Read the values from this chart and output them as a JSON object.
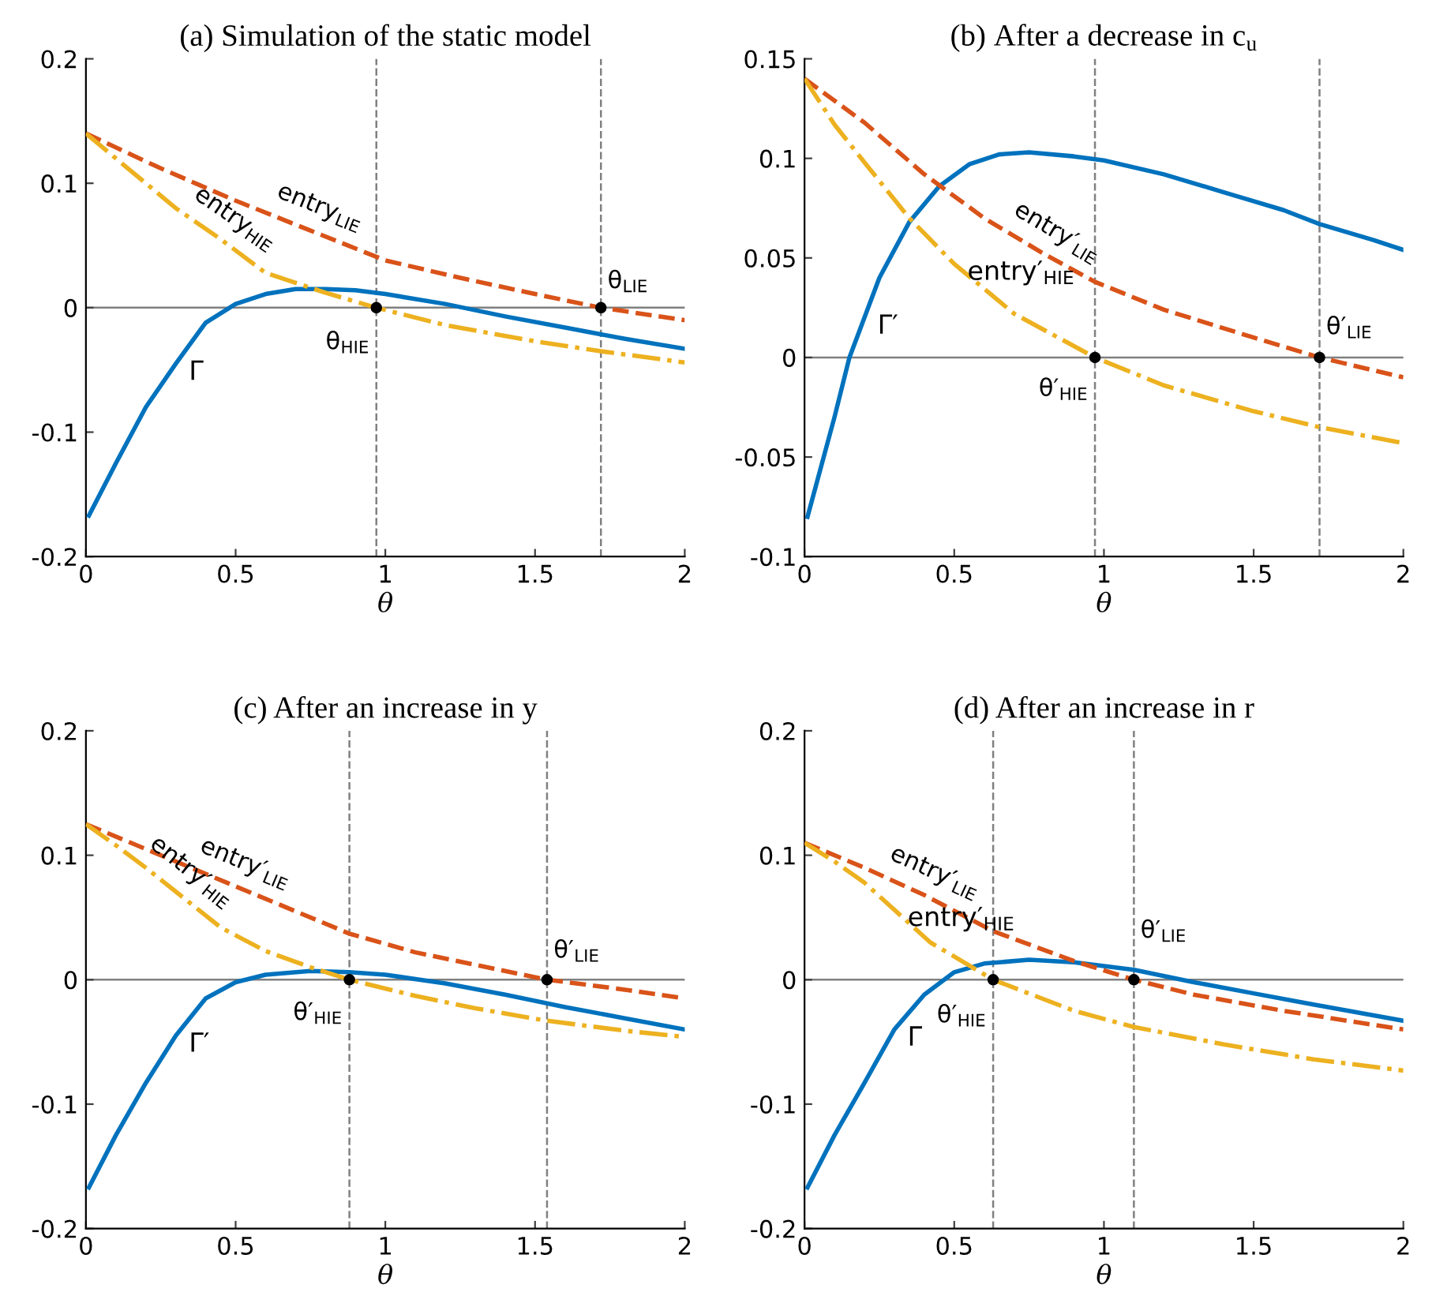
{
  "chart_data": [
    {
      "type": "line",
      "title": "(a) Simulation of the static model",
      "xlabel": "θ",
      "xlim": [
        0,
        2
      ],
      "xticks": [
        0,
        0.5,
        1,
        1.5,
        2
      ],
      "ylim": [
        -0.2,
        0.2
      ],
      "yticks": [
        -0.2,
        -0.1,
        0,
        0.1,
        0.2
      ],
      "grid": false,
      "series": [
        {
          "color": "#0072bd",
          "line_style": "solid",
          "x": [
            0.01,
            0.1,
            0.2,
            0.3,
            0.4,
            0.5,
            0.6,
            0.7,
            0.8,
            0.9,
            1.0,
            1.2,
            1.4,
            1.6,
            1.8,
            2.0
          ],
          "values": [
            -0.167,
            -0.125,
            -0.08,
            -0.045,
            -0.012,
            0.003,
            0.011,
            0.015,
            0.015,
            0.014,
            0.011,
            0.003,
            -0.007,
            -0.016,
            -0.025,
            -0.033
          ]
        },
        {
          "color": "#d95319",
          "line_style": "dashed",
          "x": [
            0,
            0.25,
            0.5,
            0.75,
            1.0,
            1.25,
            1.5,
            1.72,
            2.0
          ],
          "values": [
            0.14,
            0.112,
            0.086,
            0.062,
            0.038,
            0.024,
            0.011,
            0.0,
            -0.01
          ]
        },
        {
          "color": "#edb120",
          "line_style": "dashdot",
          "x": [
            0,
            0.1,
            0.2,
            0.3,
            0.45,
            0.6,
            0.8,
            0.97,
            1.2,
            1.5,
            1.72,
            2.0
          ],
          "values": [
            0.14,
            0.12,
            0.1,
            0.08,
            0.055,
            0.028,
            0.012,
            0.0,
            -0.014,
            -0.027,
            -0.035,
            -0.044
          ]
        },
        {
          "type": "scatter",
          "color": "#000000",
          "marker": "circle",
          "x": [
            0.97,
            1.72
          ],
          "values": [
            0,
            0
          ]
        }
      ],
      "ref_lines": [
        {
          "axis": "y",
          "value": 0,
          "color": "#808080",
          "line_style": "solid"
        },
        {
          "axis": "x",
          "value": 0.97,
          "color": "#808080",
          "line_style": "dashed"
        },
        {
          "axis": "x",
          "value": 1.72,
          "color": "#808080",
          "line_style": "dashed"
        }
      ],
      "annotations": [
        {
          "text": "entry$_{LIE}$",
          "x": 0.75,
          "y": 0.062
        },
        {
          "text": "entry$_{HIE}$",
          "x": 0.45,
          "y": 0.055
        },
        {
          "text": "θ$_{LIE}$",
          "x": 1.72,
          "y": 0.021
        },
        {
          "text": "θ$_{HIE}$",
          "x": 0.97,
          "y": -0.028
        },
        {
          "text": "Γ",
          "x": 0.3,
          "y": -0.045
        }
      ]
    },
    {
      "type": "line",
      "title": "(b) After a decrease in c$_{u}$",
      "xlabel": "θ",
      "xlim": [
        0,
        2
      ],
      "xticks": [
        0,
        0.5,
        1,
        1.5,
        2
      ],
      "ylim": [
        -0.1,
        0.15
      ],
      "yticks": [
        -0.1,
        -0.05,
        0,
        0.05,
        0.1,
        0.15
      ],
      "grid": false,
      "series": [
        {
          "color": "#0072bd",
          "line_style": "solid",
          "x": [
            0.01,
            0.1,
            0.15,
            0.25,
            0.35,
            0.45,
            0.55,
            0.65,
            0.75,
            0.9,
            1.0,
            1.2,
            1.4,
            1.6,
            1.72,
            1.9,
            2.0
          ],
          "values": [
            -0.08,
            -0.03,
            0.0,
            0.04,
            0.068,
            0.086,
            0.097,
            0.102,
            0.103,
            0.101,
            0.099,
            0.092,
            0.083,
            0.074,
            0.067,
            0.059,
            0.054
          ]
        },
        {
          "color": "#d95319",
          "line_style": "dashed",
          "x": [
            0,
            0.2,
            0.4,
            0.6,
            0.8,
            0.97,
            1.2,
            1.5,
            1.72,
            2.0
          ],
          "values": [
            0.14,
            0.118,
            0.092,
            0.07,
            0.052,
            0.038,
            0.024,
            0.01,
            0.0,
            -0.01
          ]
        },
        {
          "color": "#edb120",
          "line_style": "dashdot",
          "x": [
            0,
            0.1,
            0.2,
            0.35,
            0.5,
            0.7,
            0.97,
            1.2,
            1.5,
            1.72,
            2.0
          ],
          "values": [
            0.14,
            0.117,
            0.098,
            0.07,
            0.047,
            0.022,
            0.0,
            -0.014,
            -0.027,
            -0.035,
            -0.043
          ]
        },
        {
          "type": "scatter",
          "color": "#000000",
          "marker": "circle",
          "x": [
            0.97,
            1.72
          ],
          "values": [
            0,
            0
          ]
        }
      ],
      "ref_lines": [
        {
          "axis": "y",
          "value": 0,
          "color": "#808080",
          "line_style": "solid"
        },
        {
          "axis": "x",
          "value": 0.97,
          "color": "#808080",
          "line_style": "dashed"
        },
        {
          "axis": "x",
          "value": 1.72,
          "color": "#808080",
          "line_style": "dashed"
        }
      ],
      "annotations": [
        {
          "text": "entry′$_{LIE}$",
          "x": 0.8,
          "y": 0.052
        },
        {
          "text": "entry′$_{HIE}$",
          "x": 0.5,
          "y": 0.047
        },
        {
          "text": "θ′$_{LIE}$",
          "x": 1.72,
          "y": 0.015
        },
        {
          "text": "θ′$_{HIE}$",
          "x": 0.97,
          "y": -0.016
        },
        {
          "text": "Γ′",
          "x": 0.2,
          "y": 0.02
        }
      ]
    },
    {
      "type": "line",
      "title": "(c) After an increase in y",
      "xlabel": "θ",
      "xlim": [
        0,
        2
      ],
      "xticks": [
        0,
        0.5,
        1,
        1.5,
        2
      ],
      "ylim": [
        -0.2,
        0.2
      ],
      "yticks": [
        -0.2,
        -0.1,
        0,
        0.1,
        0.2
      ],
      "grid": false,
      "series": [
        {
          "color": "#0072bd",
          "line_style": "solid",
          "x": [
            0.01,
            0.1,
            0.2,
            0.3,
            0.4,
            0.5,
            0.6,
            0.75,
            0.88,
            1.0,
            1.2,
            1.4,
            1.6,
            1.8,
            2.0
          ],
          "values": [
            -0.167,
            -0.125,
            -0.083,
            -0.045,
            -0.015,
            -0.002,
            0.004,
            0.007,
            0.006,
            0.004,
            -0.003,
            -0.012,
            -0.022,
            -0.031,
            -0.04
          ]
        },
        {
          "color": "#d95319",
          "line_style": "dashed",
          "x": [
            0,
            0.25,
            0.5,
            0.7,
            0.88,
            1.1,
            1.3,
            1.54,
            1.8,
            2.0
          ],
          "values": [
            0.125,
            0.1,
            0.075,
            0.055,
            0.037,
            0.022,
            0.012,
            0.0,
            -0.008,
            -0.015
          ]
        },
        {
          "color": "#edb120",
          "line_style": "dashdot",
          "x": [
            0,
            0.1,
            0.2,
            0.45,
            0.6,
            0.75,
            0.88,
            1.1,
            1.3,
            1.54,
            1.8,
            2.0
          ],
          "values": [
            0.125,
            0.108,
            0.09,
            0.042,
            0.023,
            0.01,
            0.0,
            -0.013,
            -0.023,
            -0.033,
            -0.041,
            -0.046
          ]
        },
        {
          "type": "scatter",
          "color": "#000000",
          "marker": "circle",
          "x": [
            0.88,
            1.54
          ],
          "values": [
            0,
            0
          ]
        }
      ],
      "ref_lines": [
        {
          "axis": "y",
          "value": 0,
          "color": "#808080",
          "line_style": "solid"
        },
        {
          "axis": "x",
          "value": 0.88,
          "color": "#808080",
          "line_style": "dashed"
        },
        {
          "axis": "x",
          "value": 1.54,
          "color": "#808080",
          "line_style": "dashed"
        }
      ],
      "annotations": [
        {
          "text": "entry′$_{LIE}$",
          "x": 0.5,
          "y": 0.075
        },
        {
          "text": "entry′$_{HIE}$",
          "x": 0.3,
          "y": 0.071
        },
        {
          "text": "θ′$_{LIE}$",
          "x": 1.54,
          "y": 0.023
        },
        {
          "text": "θ′$_{HIE}$",
          "x": 0.88,
          "y": -0.027
        },
        {
          "text": "Γ′",
          "x": 0.3,
          "y": -0.045
        }
      ]
    },
    {
      "type": "line",
      "title": "(d) After an increase in r",
      "xlabel": "θ",
      "xlim": [
        0,
        2
      ],
      "xticks": [
        0,
        0.5,
        1,
        1.5,
        2
      ],
      "ylim": [
        -0.2,
        0.2
      ],
      "yticks": [
        -0.2,
        -0.1,
        0,
        0.1,
        0.2
      ],
      "grid": false,
      "series": [
        {
          "color": "#0072bd",
          "line_style": "solid",
          "x": [
            0.01,
            0.1,
            0.2,
            0.3,
            0.4,
            0.5,
            0.6,
            0.75,
            0.9,
            1.1,
            1.3,
            1.5,
            1.7,
            2.0
          ],
          "values": [
            -0.167,
            -0.125,
            -0.083,
            -0.04,
            -0.012,
            0.006,
            0.013,
            0.016,
            0.014,
            0.008,
            -0.002,
            -0.011,
            -0.02,
            -0.033
          ]
        },
        {
          "color": "#d95319",
          "line_style": "dashed",
          "x": [
            0,
            0.2,
            0.4,
            0.63,
            0.9,
            1.1,
            1.3,
            1.6,
            2.0
          ],
          "values": [
            0.11,
            0.09,
            0.068,
            0.039,
            0.015,
            0.0,
            -0.012,
            -0.025,
            -0.04
          ]
        },
        {
          "color": "#edb120",
          "line_style": "dashdot",
          "x": [
            0,
            0.1,
            0.2,
            0.42,
            0.63,
            0.9,
            1.1,
            1.4,
            1.7,
            2.0
          ],
          "values": [
            0.11,
            0.095,
            0.078,
            0.03,
            0.0,
            -0.025,
            -0.038,
            -0.052,
            -0.064,
            -0.073
          ]
        },
        {
          "type": "scatter",
          "color": "#000000",
          "marker": "circle",
          "x": [
            0.63,
            1.1
          ],
          "values": [
            0,
            0
          ]
        }
      ],
      "ref_lines": [
        {
          "axis": "y",
          "value": 0,
          "color": "#808080",
          "line_style": "solid"
        },
        {
          "axis": "x",
          "value": 0.63,
          "color": "#808080",
          "line_style": "dashed"
        },
        {
          "axis": "x",
          "value": 1.1,
          "color": "#808080",
          "line_style": "dashed"
        }
      ],
      "annotations": [
        {
          "text": "entry′$_{LIE}$",
          "x": 0.4,
          "y": 0.068
        },
        {
          "text": "entry′$_{HIE}$",
          "x": 0.3,
          "y": 0.056
        },
        {
          "text": "θ′$_{LIE}$",
          "x": 1.1,
          "y": 0.039
        },
        {
          "text": "θ′$_{HIE}$",
          "x": 0.63,
          "y": -0.029
        },
        {
          "text": "Γ",
          "x": 0.3,
          "y": -0.04
        }
      ]
    }
  ]
}
